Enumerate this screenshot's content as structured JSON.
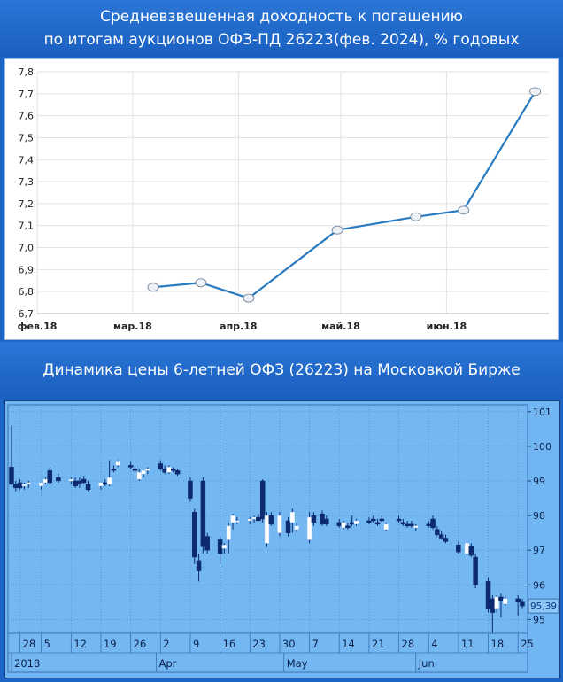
{
  "header1": {
    "line1": "Средневзвешенная доходность к погашению",
    "line2": "по итогам аукционов ОФЗ-ПД 26223(фев. 2024), % годовых"
  },
  "header2": {
    "title": "Динамика цены 6-летней ОФЗ (26223) на Московкой Бирже"
  },
  "chart_data": [
    {
      "type": "line",
      "title": "",
      "xlabel": "",
      "ylabel": "",
      "ylim": [
        6.7,
        7.8
      ],
      "y_ticks": [
        "6,7",
        "6,8",
        "6,9",
        "7,0",
        "7,1",
        "7,2",
        "7,3",
        "7,4",
        "7,5",
        "7,6",
        "7,7",
        "7,8"
      ],
      "x_ticks": [
        "фев.18",
        "мар.18",
        "апр.18",
        "май.18",
        "июн.18"
      ],
      "x_tick_dates": [
        "2018-02-01",
        "2018-03-01",
        "2018-04-01",
        "2018-05-01",
        "2018-06-01"
      ],
      "x_range": [
        "2018-02-01",
        "2018-07-01"
      ],
      "grid": true,
      "line_color": "#2b7bc0",
      "series": [
        {
          "x": [
            "2018-03-07",
            "2018-03-21",
            "2018-04-04",
            "2018-04-30",
            "2018-05-23",
            "2018-06-06",
            "2018-06-27"
          ],
          "values": [
            6.82,
            6.84,
            6.77,
            7.08,
            7.14,
            7.17,
            7.71
          ]
        }
      ]
    },
    {
      "type": "candlestick",
      "title": "",
      "ylim": [
        94.6,
        101.2
      ],
      "y_ticks": [
        "95",
        "96",
        "97",
        "98",
        "99",
        "100",
        "101"
      ],
      "x_ticks": [
        "28",
        "5",
        "12",
        "19",
        "26",
        "2",
        "9",
        "16",
        "23",
        "30",
        "7",
        "14",
        "21",
        "28",
        "4",
        "11",
        "18",
        "25"
      ],
      "x_tick_dates": [
        "2018-02-28",
        "2018-03-05",
        "2018-03-12",
        "2018-03-19",
        "2018-03-26",
        "2018-04-02",
        "2018-04-09",
        "2018-04-16",
        "2018-04-23",
        "2018-04-30",
        "2018-05-07",
        "2018-05-14",
        "2018-05-21",
        "2018-05-28",
        "2018-06-04",
        "2018-06-11",
        "2018-06-18",
        "2018-06-25"
      ],
      "period_labels": [
        "2018",
        "Apr",
        "May",
        "Jun"
      ],
      "period_dates": [
        "2018-02-26",
        "2018-04-01",
        "2018-05-01",
        "2018-06-01"
      ],
      "last_price": "95,39",
      "up_color": "#ffffff",
      "down_color": "#0d2a6e",
      "candles": [
        {
          "d": "2018-02-26",
          "o": 99.4,
          "h": 100.6,
          "l": 98.9,
          "c": 98.9
        },
        {
          "d": "2018-02-27",
          "o": 98.9,
          "h": 99.0,
          "l": 98.7,
          "c": 98.8
        },
        {
          "d": "2018-02-28",
          "o": 98.95,
          "h": 99.05,
          "l": 98.75,
          "c": 98.8
        },
        {
          "d": "2018-03-01",
          "o": 98.85,
          "h": 98.95,
          "l": 98.75,
          "c": 98.9
        },
        {
          "d": "2018-03-02",
          "o": 98.9,
          "h": 99.0,
          "l": 98.8,
          "c": 98.95
        },
        {
          "d": "2018-03-05",
          "o": 98.85,
          "h": 98.95,
          "l": 98.75,
          "c": 98.95
        },
        {
          "d": "2018-03-06",
          "o": 98.95,
          "h": 99.1,
          "l": 98.9,
          "c": 99.05
        },
        {
          "d": "2018-03-07",
          "o": 99.3,
          "h": 99.4,
          "l": 98.9,
          "c": 98.95
        },
        {
          "d": "2018-03-09",
          "o": 99.1,
          "h": 99.2,
          "l": 98.95,
          "c": 99.0
        },
        {
          "d": "2018-03-12",
          "o": 99.0,
          "h": 99.1,
          "l": 98.9,
          "c": 99.05
        },
        {
          "d": "2018-03-13",
          "o": 99.0,
          "h": 99.1,
          "l": 98.8,
          "c": 98.85
        },
        {
          "d": "2018-03-14",
          "o": 99.0,
          "h": 99.1,
          "l": 98.8,
          "c": 98.9
        },
        {
          "d": "2018-03-15",
          "o": 99.05,
          "h": 99.15,
          "l": 98.9,
          "c": 98.95
        },
        {
          "d": "2018-03-16",
          "o": 98.9,
          "h": 99.0,
          "l": 98.7,
          "c": 98.75
        },
        {
          "d": "2018-03-19",
          "o": 98.85,
          "h": 98.95,
          "l": 98.75,
          "c": 98.95
        },
        {
          "d": "2018-03-20",
          "o": 98.95,
          "h": 99.05,
          "l": 98.85,
          "c": 98.9
        },
        {
          "d": "2018-03-21",
          "o": 98.9,
          "h": 99.6,
          "l": 98.85,
          "c": 99.1
        },
        {
          "d": "2018-03-22",
          "o": 99.35,
          "h": 99.45,
          "l": 99.25,
          "c": 99.3
        },
        {
          "d": "2018-03-23",
          "o": 99.45,
          "h": 99.6,
          "l": 99.4,
          "c": 99.55
        },
        {
          "d": "2018-03-26",
          "o": 99.45,
          "h": 99.55,
          "l": 99.35,
          "c": 99.4
        },
        {
          "d": "2018-03-27",
          "o": 99.35,
          "h": 99.45,
          "l": 99.25,
          "c": 99.3
        },
        {
          "d": "2018-03-28",
          "o": 99.05,
          "h": 99.35,
          "l": 99.0,
          "c": 99.25
        },
        {
          "d": "2018-03-29",
          "o": 99.2,
          "h": 99.3,
          "l": 99.1,
          "c": 99.3
        },
        {
          "d": "2018-03-30",
          "o": 99.3,
          "h": 99.4,
          "l": 99.2,
          "c": 99.35
        },
        {
          "d": "2018-04-02",
          "o": 99.5,
          "h": 99.6,
          "l": 99.3,
          "c": 99.35
        },
        {
          "d": "2018-04-03",
          "o": 99.35,
          "h": 99.45,
          "l": 99.2,
          "c": 99.25
        },
        {
          "d": "2018-04-04",
          "o": 99.25,
          "h": 99.45,
          "l": 99.2,
          "c": 99.4
        },
        {
          "d": "2018-04-05",
          "o": 99.35,
          "h": 99.4,
          "l": 99.25,
          "c": 99.3
        },
        {
          "d": "2018-04-06",
          "o": 99.3,
          "h": 99.35,
          "l": 99.15,
          "c": 99.2
        },
        {
          "d": "2018-04-09",
          "o": 99.0,
          "h": 99.1,
          "l": 98.4,
          "c": 98.5
        },
        {
          "d": "2018-04-10",
          "o": 98.1,
          "h": 98.2,
          "l": 96.6,
          "c": 96.8
        },
        {
          "d": "2018-04-11",
          "o": 96.7,
          "h": 96.9,
          "l": 96.1,
          "c": 96.4
        },
        {
          "d": "2018-04-12",
          "o": 99.0,
          "h": 99.1,
          "l": 96.9,
          "c": 97.1
        },
        {
          "d": "2018-04-13",
          "o": 97.4,
          "h": 97.5,
          "l": 96.9,
          "c": 97.0
        },
        {
          "d": "2018-04-16",
          "o": 97.3,
          "h": 97.4,
          "l": 96.6,
          "c": 96.9
        },
        {
          "d": "2018-04-17",
          "o": 97.05,
          "h": 97.2,
          "l": 96.9,
          "c": 97.15
        },
        {
          "d": "2018-04-18",
          "o": 97.3,
          "h": 97.8,
          "l": 96.9,
          "c": 97.7
        },
        {
          "d": "2018-04-19",
          "o": 97.8,
          "h": 98.05,
          "l": 97.6,
          "c": 98.0
        },
        {
          "d": "2018-04-20",
          "o": 97.85,
          "h": 97.95,
          "l": 97.75,
          "c": 97.85
        },
        {
          "d": "2018-04-23",
          "o": 97.85,
          "h": 97.95,
          "l": 97.75,
          "c": 97.9
        },
        {
          "d": "2018-04-24",
          "o": 97.9,
          "h": 98.0,
          "l": 97.8,
          "c": 97.95
        },
        {
          "d": "2018-04-25",
          "o": 97.95,
          "h": 98.05,
          "l": 97.85,
          "c": 97.85
        },
        {
          "d": "2018-04-26",
          "o": 99.0,
          "h": 99.05,
          "l": 97.8,
          "c": 97.9
        },
        {
          "d": "2018-04-27",
          "o": 97.2,
          "h": 98.1,
          "l": 97.1,
          "c": 98.0
        },
        {
          "d": "2018-04-28",
          "o": 98.0,
          "h": 98.1,
          "l": 97.7,
          "c": 97.75
        },
        {
          "d": "2018-04-30",
          "o": 97.5,
          "h": 98.1,
          "l": 97.4,
          "c": 98.0
        },
        {
          "d": "2018-05-02",
          "o": 97.85,
          "h": 97.95,
          "l": 97.4,
          "c": 97.5
        },
        {
          "d": "2018-05-03",
          "o": 97.8,
          "h": 98.2,
          "l": 97.5,
          "c": 98.1
        },
        {
          "d": "2018-05-04",
          "o": 97.6,
          "h": 97.8,
          "l": 97.5,
          "c": 97.7
        },
        {
          "d": "2018-05-07",
          "o": 97.3,
          "h": 98.1,
          "l": 97.2,
          "c": 97.95
        },
        {
          "d": "2018-05-08",
          "o": 98.0,
          "h": 98.1,
          "l": 97.7,
          "c": 97.8
        },
        {
          "d": "2018-05-10",
          "o": 98.05,
          "h": 98.15,
          "l": 97.7,
          "c": 97.75
        },
        {
          "d": "2018-05-11",
          "o": 97.9,
          "h": 98.0,
          "l": 97.7,
          "c": 97.75
        },
        {
          "d": "2018-05-14",
          "o": 97.8,
          "h": 97.9,
          "l": 97.65,
          "c": 97.7
        },
        {
          "d": "2018-05-15",
          "o": 97.65,
          "h": 97.85,
          "l": 97.6,
          "c": 97.8
        },
        {
          "d": "2018-05-16",
          "o": 97.7,
          "h": 97.8,
          "l": 97.6,
          "c": 97.65
        },
        {
          "d": "2018-05-17",
          "o": 97.8,
          "h": 98.0,
          "l": 97.7,
          "c": 97.75
        },
        {
          "d": "2018-05-18",
          "o": 97.75,
          "h": 97.9,
          "l": 97.7,
          "c": 97.85
        },
        {
          "d": "2018-05-21",
          "o": 97.85,
          "h": 97.95,
          "l": 97.75,
          "c": 97.8
        },
        {
          "d": "2018-05-22",
          "o": 97.9,
          "h": 98.0,
          "l": 97.8,
          "c": 97.85
        },
        {
          "d": "2018-05-23",
          "o": 97.8,
          "h": 97.9,
          "l": 97.7,
          "c": 97.75
        },
        {
          "d": "2018-05-24",
          "o": 97.9,
          "h": 98.0,
          "l": 97.8,
          "c": 97.85
        },
        {
          "d": "2018-05-25",
          "o": 97.6,
          "h": 97.8,
          "l": 97.55,
          "c": 97.75
        },
        {
          "d": "2018-05-28",
          "o": 97.9,
          "h": 98.0,
          "l": 97.8,
          "c": 97.85
        },
        {
          "d": "2018-05-29",
          "o": 97.8,
          "h": 97.9,
          "l": 97.7,
          "c": 97.75
        },
        {
          "d": "2018-05-30",
          "o": 97.75,
          "h": 97.85,
          "l": 97.65,
          "c": 97.7
        },
        {
          "d": "2018-05-31",
          "o": 97.75,
          "h": 97.85,
          "l": 97.65,
          "c": 97.7
        },
        {
          "d": "2018-06-01",
          "o": 97.65,
          "h": 97.75,
          "l": 97.55,
          "c": 97.7
        },
        {
          "d": "2018-06-04",
          "o": 97.75,
          "h": 97.85,
          "l": 97.65,
          "c": 97.7
        },
        {
          "d": "2018-06-05",
          "o": 97.9,
          "h": 98.0,
          "l": 97.6,
          "c": 97.65
        },
        {
          "d": "2018-06-06",
          "o": 97.6,
          "h": 97.7,
          "l": 97.4,
          "c": 97.45
        },
        {
          "d": "2018-06-07",
          "o": 97.45,
          "h": 97.55,
          "l": 97.3,
          "c": 97.35
        },
        {
          "d": "2018-06-08",
          "o": 97.35,
          "h": 97.45,
          "l": 97.2,
          "c": 97.25
        },
        {
          "d": "2018-06-11",
          "o": 97.15,
          "h": 97.25,
          "l": 96.9,
          "c": 96.95
        },
        {
          "d": "2018-06-13",
          "o": 96.9,
          "h": 97.3,
          "l": 96.8,
          "c": 97.2
        },
        {
          "d": "2018-06-14",
          "o": 97.1,
          "h": 97.2,
          "l": 96.8,
          "c": 96.85
        },
        {
          "d": "2018-06-15",
          "o": 96.8,
          "h": 96.9,
          "l": 95.9,
          "c": 96.0
        },
        {
          "d": "2018-06-18",
          "o": 96.1,
          "h": 96.2,
          "l": 95.2,
          "c": 95.3
        },
        {
          "d": "2018-06-19",
          "o": 95.6,
          "h": 95.7,
          "l": 94.6,
          "c": 95.2
        },
        {
          "d": "2018-06-20",
          "o": 95.3,
          "h": 95.7,
          "l": 95.2,
          "c": 95.65
        },
        {
          "d": "2018-06-21",
          "o": 95.65,
          "h": 95.75,
          "l": 95.05,
          "c": 95.55
        },
        {
          "d": "2018-06-22",
          "o": 95.45,
          "h": 95.7,
          "l": 95.4,
          "c": 95.6
        },
        {
          "d": "2018-06-25",
          "o": 95.6,
          "h": 95.7,
          "l": 95.1,
          "c": 95.5
        },
        {
          "d": "2018-06-26",
          "o": 95.5,
          "h": 95.6,
          "l": 95.3,
          "c": 95.39
        }
      ]
    }
  ]
}
